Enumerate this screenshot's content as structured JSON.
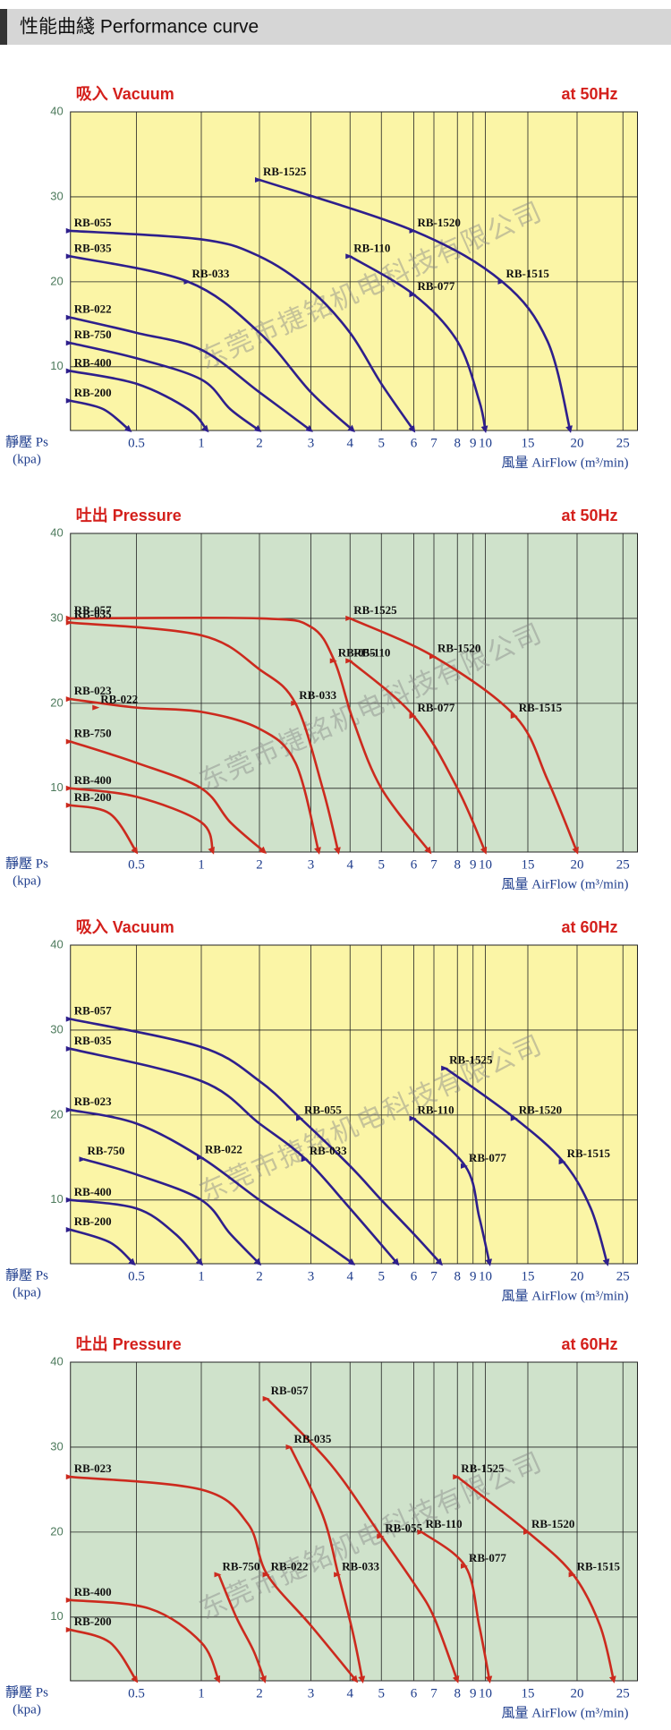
{
  "header": "性能曲綫 Performance curve",
  "chart_data": [
    {
      "type": "line",
      "title": "吸入 Vacuum",
      "frequency": "at 50Hz",
      "ylabel": "靜壓 Ps",
      "yunit": "(kpa)",
      "xlabel": "風量 AirFlow (m³/min)",
      "watermark": "东莞市捷铭机电科技有限公司",
      "background": "#fbf5a6",
      "color": "#2e1f8c",
      "xlim": [
        0,
        26.5
      ],
      "xticks": [
        0.5,
        1,
        2,
        3,
        4,
        5,
        6,
        7,
        8,
        9,
        10,
        15,
        20,
        25
      ],
      "ylim": [
        2.5,
        40
      ],
      "yticks": [
        10,
        20,
        30,
        40
      ],
      "grid": true,
      "curves": [
        {
          "x": [
            2,
            6,
            12,
            17,
            19.3
          ],
          "values": [
            32,
            26,
            20,
            13,
            2.5
          ]
        },
        {
          "x": [
            4,
            6,
            8,
            9.5,
            10
          ],
          "values": [
            23,
            18.5,
            13,
            6,
            2.5
          ]
        },
        {
          "x": [
            0,
            1,
            2,
            3,
            4,
            5,
            6
          ],
          "values": [
            26,
            25,
            23,
            19,
            14,
            8,
            2.5
          ]
        },
        {
          "x": [
            0,
            0.9,
            2,
            3,
            4.1
          ],
          "values": [
            23,
            20,
            14,
            7,
            2.5
          ]
        },
        {
          "x": [
            0,
            0.5,
            1,
            2,
            3
          ],
          "values": [
            15.8,
            14,
            12,
            7,
            2.5
          ]
        },
        {
          "x": [
            0,
            0.5,
            1,
            1.5,
            2
          ],
          "values": [
            12.8,
            11,
            8.5,
            5,
            2.5
          ]
        },
        {
          "x": [
            0,
            0.5,
            0.9,
            1.1
          ],
          "values": [
            9.5,
            8,
            5,
            2.5
          ]
        },
        {
          "x": [
            0,
            0.25,
            0.45
          ],
          "values": [
            6,
            5,
            2.5
          ]
        }
      ],
      "points": [
        {
          "label": "RB-1525",
          "x": 2,
          "y": 32
        },
        {
          "label": "RB-1520",
          "x": 6,
          "y": 26
        },
        {
          "label": "RB-1515",
          "x": 12,
          "y": 20
        },
        {
          "label": "RB-110",
          "x": 4,
          "y": 23
        },
        {
          "label": "RB-077",
          "x": 6,
          "y": 18.5
        },
        {
          "label": "RB-055",
          "x": 0,
          "y": 26
        },
        {
          "label": "RB-035",
          "x": 0,
          "y": 23
        },
        {
          "label": "RB-033",
          "x": 0.9,
          "y": 20
        },
        {
          "label": "RB-022",
          "x": 0,
          "y": 15.8
        },
        {
          "label": "RB-750",
          "x": 0,
          "y": 12.8
        },
        {
          "label": "RB-400",
          "x": 0,
          "y": 9.5
        },
        {
          "label": "RB-200",
          "x": 0,
          "y": 6
        }
      ]
    },
    {
      "type": "line",
      "title": "吐出 Pressure",
      "frequency": "at 50Hz",
      "ylabel": "靜壓 Ps",
      "yunit": "(kpa)",
      "xlabel": "風量 AirFlow (m³/min)",
      "watermark": "东莞市捷铭机电科技有限公司",
      "background": "#cfe2cb",
      "color": "#cc2a1e",
      "xlim": [
        0,
        26.5
      ],
      "xticks": [
        0.5,
        1,
        2,
        3,
        4,
        5,
        6,
        7,
        8,
        9,
        10,
        15,
        20,
        25
      ],
      "ylim": [
        2.5,
        40
      ],
      "yticks": [
        10,
        20,
        30,
        40
      ],
      "grid": true,
      "curves": [
        {
          "x": [
            0,
            2,
            3,
            3.6,
            4.1,
            5,
            6.8
          ],
          "values": [
            30,
            30,
            29,
            25,
            18,
            10,
            2.5
          ]
        },
        {
          "x": [
            0,
            1,
            2,
            2.7,
            3.3,
            3.7
          ],
          "values": [
            29.5,
            28,
            24,
            20,
            10,
            2.5
          ]
        },
        {
          "x": [
            0,
            0.5,
            1,
            2,
            2.7,
            3.2
          ],
          "values": [
            20.5,
            19.5,
            19,
            17,
            13,
            2.5
          ]
        },
        {
          "x": [
            0,
            0.5,
            1,
            1.5,
            2.1
          ],
          "values": [
            15.5,
            13,
            10,
            6,
            2.5
          ]
        },
        {
          "x": [
            0,
            0.5,
            1,
            1.2
          ],
          "values": [
            10,
            9,
            6,
            2.5
          ]
        },
        {
          "x": [
            0,
            0.3,
            0.5
          ],
          "values": [
            8,
            7,
            2.5
          ]
        },
        {
          "x": [
            4,
            7,
            13.5,
            17,
            20
          ],
          "values": [
            30,
            25.5,
            18.5,
            11,
            2.5
          ]
        },
        {
          "x": [
            4,
            6,
            8,
            10
          ],
          "values": [
            25,
            18.5,
            10,
            2.5
          ]
        }
      ],
      "points": [
        {
          "label": "RB-057",
          "x": 0,
          "y": 30
        },
        {
          "label": "RB-035",
          "x": 0,
          "y": 29.5
        },
        {
          "label": "RB-055",
          "x": 3.6,
          "y": 25
        },
        {
          "label": "RB-033",
          "x": 2.7,
          "y": 20
        },
        {
          "label": "RB-023",
          "x": 0,
          "y": 20.5
        },
        {
          "label": "RB-022",
          "x": 0.2,
          "y": 19.5
        },
        {
          "label": "RB-750",
          "x": 0,
          "y": 15.5
        },
        {
          "label": "RB-400",
          "x": 0,
          "y": 10
        },
        {
          "label": "RB-200",
          "x": 0,
          "y": 8
        },
        {
          "label": "RB-1525",
          "x": 4,
          "y": 30
        },
        {
          "label": "RB-110",
          "x": 4,
          "y": 25
        },
        {
          "label": "RB-1520",
          "x": 7,
          "y": 25.5
        },
        {
          "label": "RB-077",
          "x": 6,
          "y": 18.5
        },
        {
          "label": "RB-1515",
          "x": 13.5,
          "y": 18.5
        }
      ]
    },
    {
      "type": "line",
      "title": "吸入 Vacuum",
      "frequency": "at 60Hz",
      "ylabel": "靜壓 Ps",
      "yunit": "(kpa)",
      "xlabel": "風量 AirFlow (m³/min)",
      "watermark": "东莞市捷铭机电科技有限公司",
      "background": "#fbf5a6",
      "color": "#2e1f8c",
      "xlim": [
        0,
        26.5
      ],
      "xticks": [
        0.5,
        1,
        2,
        3,
        4,
        5,
        6,
        7,
        8,
        9,
        10,
        15,
        20,
        25
      ],
      "ylim": [
        2.5,
        40
      ],
      "yticks": [
        10,
        20,
        30,
        40
      ],
      "grid": true,
      "curves": [
        {
          "x": [
            0,
            1,
            2,
            2.8,
            4,
            5,
            6,
            7.3
          ],
          "values": [
            31.3,
            28,
            24,
            19.6,
            14,
            10,
            6,
            2.5
          ]
        },
        {
          "x": [
            0,
            1,
            2,
            2.9,
            4,
            5.5
          ],
          "values": [
            27.8,
            24,
            19,
            14.8,
            9,
            2.5
          ]
        },
        {
          "x": [
            0,
            0.5,
            1,
            2,
            3,
            4.1
          ],
          "values": [
            20.6,
            19,
            15,
            10,
            6,
            2.5
          ]
        },
        {
          "x": [
            0.1,
            0.5,
            1,
            1.5,
            2
          ],
          "values": [
            14.8,
            13,
            10,
            6,
            2.5
          ]
        },
        {
          "x": [
            0,
            0.5,
            0.8,
            1
          ],
          "values": [
            10,
            9,
            6,
            2.5
          ]
        },
        {
          "x": [
            0,
            0.3,
            0.48
          ],
          "values": [
            6.5,
            5,
            2.5
          ]
        },
        {
          "x": [
            6,
            8.5,
            9.5,
            10.5
          ],
          "values": [
            19.6,
            14,
            8,
            2.5
          ]
        },
        {
          "x": [
            7.5,
            13.5,
            18.6,
            21.5,
            23.3
          ],
          "values": [
            25.5,
            19.6,
            14.5,
            9,
            2.5
          ]
        }
      ],
      "points": [
        {
          "label": "RB-057",
          "x": 0,
          "y": 31.3
        },
        {
          "label": "RB-035",
          "x": 0,
          "y": 27.8
        },
        {
          "label": "RB-055",
          "x": 2.8,
          "y": 19.6
        },
        {
          "label": "RB-033",
          "x": 2.9,
          "y": 14.8
        },
        {
          "label": "RB-023",
          "x": 0,
          "y": 20.6
        },
        {
          "label": "RB-022",
          "x": 1,
          "y": 15
        },
        {
          "label": "RB-750",
          "x": 0.1,
          "y": 14.8
        },
        {
          "label": "RB-400",
          "x": 0,
          "y": 10
        },
        {
          "label": "RB-200",
          "x": 0,
          "y": 6.5
        },
        {
          "label": "RB-110",
          "x": 6,
          "y": 19.6
        },
        {
          "label": "RB-077",
          "x": 8.5,
          "y": 14
        },
        {
          "label": "RB-1525",
          "x": 7.5,
          "y": 25.5
        },
        {
          "label": "RB-1520",
          "x": 13.5,
          "y": 19.6
        },
        {
          "label": "RB-1515",
          "x": 18.6,
          "y": 14.5
        }
      ]
    },
    {
      "type": "line",
      "title": "吐出 Pressure",
      "frequency": "at 60Hz",
      "ylabel": "靜壓 Ps",
      "yunit": "(kpa)",
      "xlabel": "風量 AirFlow (m³/min)",
      "watermark": "东莞市捷铭机电科技有限公司",
      "background": "#cfe2cb",
      "color": "#cc2a1e",
      "xlim": [
        0,
        26.5
      ],
      "xticks": [
        0.5,
        1,
        2,
        3,
        4,
        5,
        6,
        7,
        8,
        9,
        10,
        15,
        20,
        25
      ],
      "ylim": [
        2.5,
        40
      ],
      "yticks": [
        10,
        20,
        30,
        40
      ],
      "grid": true,
      "curves": [
        {
          "x": [
            2.15,
            3.5,
            5,
            6,
            7,
            8
          ],
          "values": [
            35.7,
            28,
            19.5,
            14,
            10,
            2.5
          ]
        },
        {
          "x": [
            2.6,
            3.3,
            3.7,
            4.1,
            4.4
          ],
          "values": [
            30,
            22,
            15,
            8,
            2.5
          ]
        },
        {
          "x": [
            0,
            1,
            1.8,
            2.15,
            3,
            4.2
          ],
          "values": [
            26.5,
            25,
            21,
            15,
            9,
            2.5
          ]
        },
        {
          "x": [
            1.3,
            1.6,
            1.9,
            2.1
          ],
          "values": [
            15,
            10,
            6,
            2.5
          ]
        },
        {
          "x": [
            0,
            0.6,
            1,
            1.3
          ],
          "values": [
            12,
            11,
            7,
            2.5
          ]
        },
        {
          "x": [
            0,
            0.3,
            0.5
          ],
          "values": [
            8.5,
            7,
            2.5
          ]
        },
        {
          "x": [
            6.4,
            8.5,
            9.5,
            10.5
          ],
          "values": [
            20,
            16,
            9,
            2.5
          ]
        },
        {
          "x": [
            8,
            15,
            19.6,
            22.5,
            24
          ],
          "values": [
            26.5,
            20,
            15,
            9,
            2.5
          ]
        }
      ],
      "points": [
        {
          "label": "RB-057",
          "x": 2.15,
          "y": 35.7
        },
        {
          "label": "RB-035",
          "x": 2.6,
          "y": 30
        },
        {
          "label": "RB-023",
          "x": 0,
          "y": 26.5
        },
        {
          "label": "RB-750",
          "x": 1.3,
          "y": 15
        },
        {
          "label": "RB-022",
          "x": 2.15,
          "y": 15
        },
        {
          "label": "RB-033",
          "x": 3.7,
          "y": 15
        },
        {
          "label": "RB-055",
          "x": 5,
          "y": 19.5
        },
        {
          "label": "RB-110",
          "x": 6.4,
          "y": 20
        },
        {
          "label": "RB-077",
          "x": 8.5,
          "y": 16
        },
        {
          "label": "RB-1525",
          "x": 8,
          "y": 26.5
        },
        {
          "label": "RB-1520",
          "x": 15,
          "y": 20
        },
        {
          "label": "RB-1515",
          "x": 19.6,
          "y": 15
        },
        {
          "label": "RB-400",
          "x": 0,
          "y": 12
        },
        {
          "label": "RB-200",
          "x": 0,
          "y": 8.5
        }
      ]
    }
  ]
}
